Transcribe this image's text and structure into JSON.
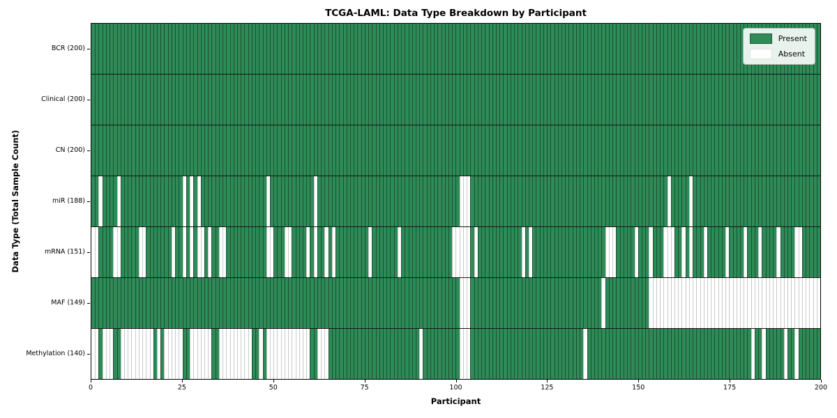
{
  "chart_data": {
    "type": "heatmap",
    "title": "TCGA-LAML: Data Type Breakdown by Participant",
    "xlabel": "Participant",
    "ylabel": "Data Type (Total Sample Count)",
    "x_range": [
      0,
      200
    ],
    "n_participants": 200,
    "x_ticks": [
      0,
      25,
      50,
      75,
      100,
      125,
      150,
      175,
      200
    ],
    "grid": false,
    "legend_position": "upper right",
    "legend_labels": [
      "Present",
      "Absent"
    ],
    "colors": {
      "present": "#2e8b57",
      "absent": "#ffffff"
    },
    "rows": [
      {
        "name": "BCR",
        "label": "BCR (200)",
        "present_count": 200,
        "absent_participants": []
      },
      {
        "name": "Clinical",
        "label": "Clinical (200)",
        "present_count": 200,
        "absent_participants": []
      },
      {
        "name": "CN",
        "label": "CN (200)",
        "present_count": 200,
        "absent_participants": []
      },
      {
        "name": "miR",
        "label": "miR (188)",
        "present_count": 188,
        "absent_participants": [
          2,
          7,
          25,
          27,
          29,
          48,
          61,
          101,
          102,
          103,
          158,
          164
        ]
      },
      {
        "name": "mRNA",
        "label": "mRNA (151)",
        "present_count": 151,
        "absent_participants": [
          0,
          1,
          6,
          7,
          13,
          14,
          22,
          25,
          27,
          29,
          30,
          32,
          35,
          36,
          48,
          49,
          53,
          54,
          59,
          61,
          64,
          66,
          76,
          84,
          99,
          100,
          101,
          102,
          103,
          105,
          118,
          120,
          141,
          142,
          143,
          149,
          153,
          157,
          158,
          159,
          162,
          164,
          168,
          174,
          179,
          183,
          188,
          193,
          194
        ]
      },
      {
        "name": "MAF",
        "label": "MAF (149)",
        "present_count": 149,
        "absent_participants": [
          101,
          102,
          103,
          140,
          153,
          154,
          155,
          156,
          157,
          158,
          159,
          160,
          161,
          162,
          163,
          164,
          165,
          166,
          167,
          168,
          169,
          170,
          171,
          172,
          173,
          174,
          175,
          176,
          177,
          178,
          179,
          180,
          181,
          182,
          183,
          184,
          185,
          186,
          187,
          188,
          189,
          190,
          191,
          192,
          193,
          194,
          195,
          196,
          197,
          198,
          199
        ]
      },
      {
        "name": "Methylation",
        "label": "Methylation (140)",
        "present_count": 140,
        "absent_participants": [
          0,
          1,
          3,
          4,
          5,
          8,
          9,
          10,
          11,
          12,
          13,
          14,
          15,
          16,
          18,
          20,
          21,
          22,
          23,
          24,
          27,
          28,
          29,
          30,
          31,
          32,
          35,
          36,
          37,
          38,
          39,
          40,
          41,
          42,
          43,
          46,
          48,
          49,
          50,
          51,
          52,
          53,
          54,
          55,
          56,
          57,
          58,
          59,
          62,
          63,
          64,
          90,
          101,
          102,
          103,
          135,
          181,
          184,
          190,
          193
        ]
      }
    ]
  }
}
